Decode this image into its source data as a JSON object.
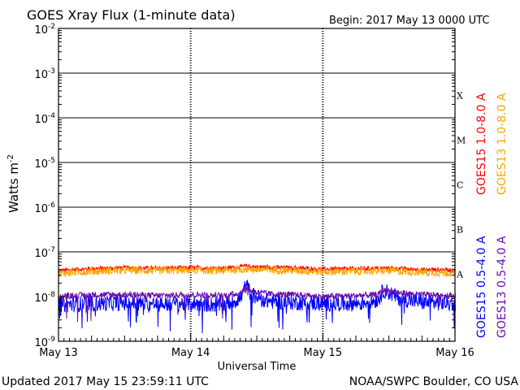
{
  "header": {
    "title": "GOES Xray Flux (1-minute data)",
    "begin": "Begin:  2017 May 13 0000 UTC"
  },
  "footer": {
    "updated": "Updated 2017 May 15 23:59:11 UTC",
    "credit": "NOAA/SWPC Boulder, CO USA"
  },
  "colors": {
    "goes15_long": "#ff0000",
    "goes13_long": "#ffa500",
    "goes15_short": "#0000ff",
    "goes13_short": "#6a0dad",
    "grid": "#000000"
  },
  "chart_data": {
    "type": "line",
    "title": "GOES Xray Flux (1-minute data)",
    "xlabel": "Universal Time",
    "ylabel": "Watts m",
    "ylabel_superscript": "-2",
    "y_scale": "log",
    "ylim": [
      1e-09,
      0.01
    ],
    "xlim": [
      "2017-05-13 00:00",
      "2017-05-16 00:00"
    ],
    "x_ticks": [
      "May 13",
      "May 14",
      "May 15",
      "May 16"
    ],
    "y_ticks": [
      {
        "base": "10",
        "exp": "-9",
        "value": 1e-09
      },
      {
        "base": "10",
        "exp": "-8",
        "value": 1e-08
      },
      {
        "base": "10",
        "exp": "-7",
        "value": 1e-07
      },
      {
        "base": "10",
        "exp": "-6",
        "value": 1e-06
      },
      {
        "base": "10",
        "exp": "-5",
        "value": 1e-05
      },
      {
        "base": "10",
        "exp": "-4",
        "value": 0.0001
      },
      {
        "base": "10",
        "exp": "-3",
        "value": 0.001
      },
      {
        "base": "10",
        "exp": "-2",
        "value": 0.01
      }
    ],
    "flare_classes": [
      {
        "label": "A",
        "value": 1e-08
      },
      {
        "label": "B",
        "value": 1e-07
      },
      {
        "label": "C",
        "value": 1e-06
      },
      {
        "label": "M",
        "value": 1e-05
      },
      {
        "label": "X",
        "value": 0.0001
      }
    ],
    "grid": true,
    "legend_position": "right",
    "series": [
      {
        "name": "GOES15 1.0-8.0 A",
        "color": "#ff0000",
        "x": [
          "2017-05-13 00:00",
          "2017-05-13 06:00",
          "2017-05-13 12:00",
          "2017-05-13 18:00",
          "2017-05-14 00:00",
          "2017-05-14 06:00",
          "2017-05-14 10:00",
          "2017-05-14 12:00",
          "2017-05-14 18:00",
          "2017-05-15 00:00",
          "2017-05-15 06:00",
          "2017-05-15 12:00",
          "2017-05-15 18:00",
          "2017-05-16 00:00"
        ],
        "y": [
          3.8e-08,
          4.2e-08,
          4.4e-08,
          4.3e-08,
          4.4e-08,
          4.3e-08,
          4.8e-08,
          4.6e-08,
          4.4e-08,
          4.1e-08,
          4.2e-08,
          4.3e-08,
          4e-08,
          3.9e-08
        ]
      },
      {
        "name": "GOES13 1.0-8.0 A",
        "color": "#ffa500",
        "x": [
          "2017-05-13 00:00",
          "2017-05-13 06:00",
          "2017-05-13 12:00",
          "2017-05-13 18:00",
          "2017-05-14 00:00",
          "2017-05-14 06:00",
          "2017-05-14 10:00",
          "2017-05-14 12:00",
          "2017-05-14 18:00",
          "2017-05-15 00:00",
          "2017-05-15 06:00",
          "2017-05-15 12:00",
          "2017-05-15 18:00",
          "2017-05-16 00:00"
        ],
        "y": [
          3.3e-08,
          3.7e-08,
          3.9e-08,
          3.8e-08,
          3.9e-08,
          3.8e-08,
          4.2e-08,
          4e-08,
          3.9e-08,
          3.6e-08,
          3.7e-08,
          3.8e-08,
          3.5e-08,
          3.4e-08
        ]
      },
      {
        "name": "GOES15 0.5-4.0 A",
        "color": "#0000ff",
        "x": [
          "2017-05-13 00:00",
          "2017-05-13 06:00",
          "2017-05-13 12:00",
          "2017-05-13 18:00",
          "2017-05-14 00:00",
          "2017-05-14 06:00",
          "2017-05-14 09:00",
          "2017-05-14 10:00",
          "2017-05-14 11:00",
          "2017-05-14 14:00",
          "2017-05-14 18:00",
          "2017-05-15 00:00",
          "2017-05-15 06:00",
          "2017-05-15 10:00",
          "2017-05-15 11:00",
          "2017-05-15 14:00",
          "2017-05-15 18:00",
          "2017-05-16 00:00"
        ],
        "y": [
          6.5e-09,
          7e-09,
          7.2e-09,
          6.8e-09,
          7e-09,
          6.5e-09,
          9e-09,
          1.8e-08,
          1.1e-08,
          8e-09,
          7.5e-09,
          7e-09,
          7e-09,
          8.5e-09,
          1.4e-08,
          9e-09,
          7.5e-09,
          7e-09
        ]
      },
      {
        "name": "GOES13 0.5-4.0 A",
        "color": "#6a0dad",
        "x": [
          "2017-05-13 00:00",
          "2017-05-13 06:00",
          "2017-05-13 12:00",
          "2017-05-13 18:00",
          "2017-05-14 00:00",
          "2017-05-14 06:00",
          "2017-05-14 09:00",
          "2017-05-14 10:00",
          "2017-05-14 11:00",
          "2017-05-14 14:00",
          "2017-05-14 18:00",
          "2017-05-15 00:00",
          "2017-05-15 06:00",
          "2017-05-15 10:00",
          "2017-05-15 11:00",
          "2017-05-15 14:00",
          "2017-05-15 18:00",
          "2017-05-16 00:00"
        ],
        "y": [
          1e-08,
          1.1e-08,
          1.1e-08,
          1.05e-08,
          1.1e-08,
          1.05e-08,
          1.2e-08,
          1.6e-08,
          1.3e-08,
          1.15e-08,
          1.1e-08,
          1e-08,
          1.05e-08,
          1.1e-08,
          1.4e-08,
          1.2e-08,
          1.1e-08,
          1.05e-08
        ]
      }
    ]
  }
}
